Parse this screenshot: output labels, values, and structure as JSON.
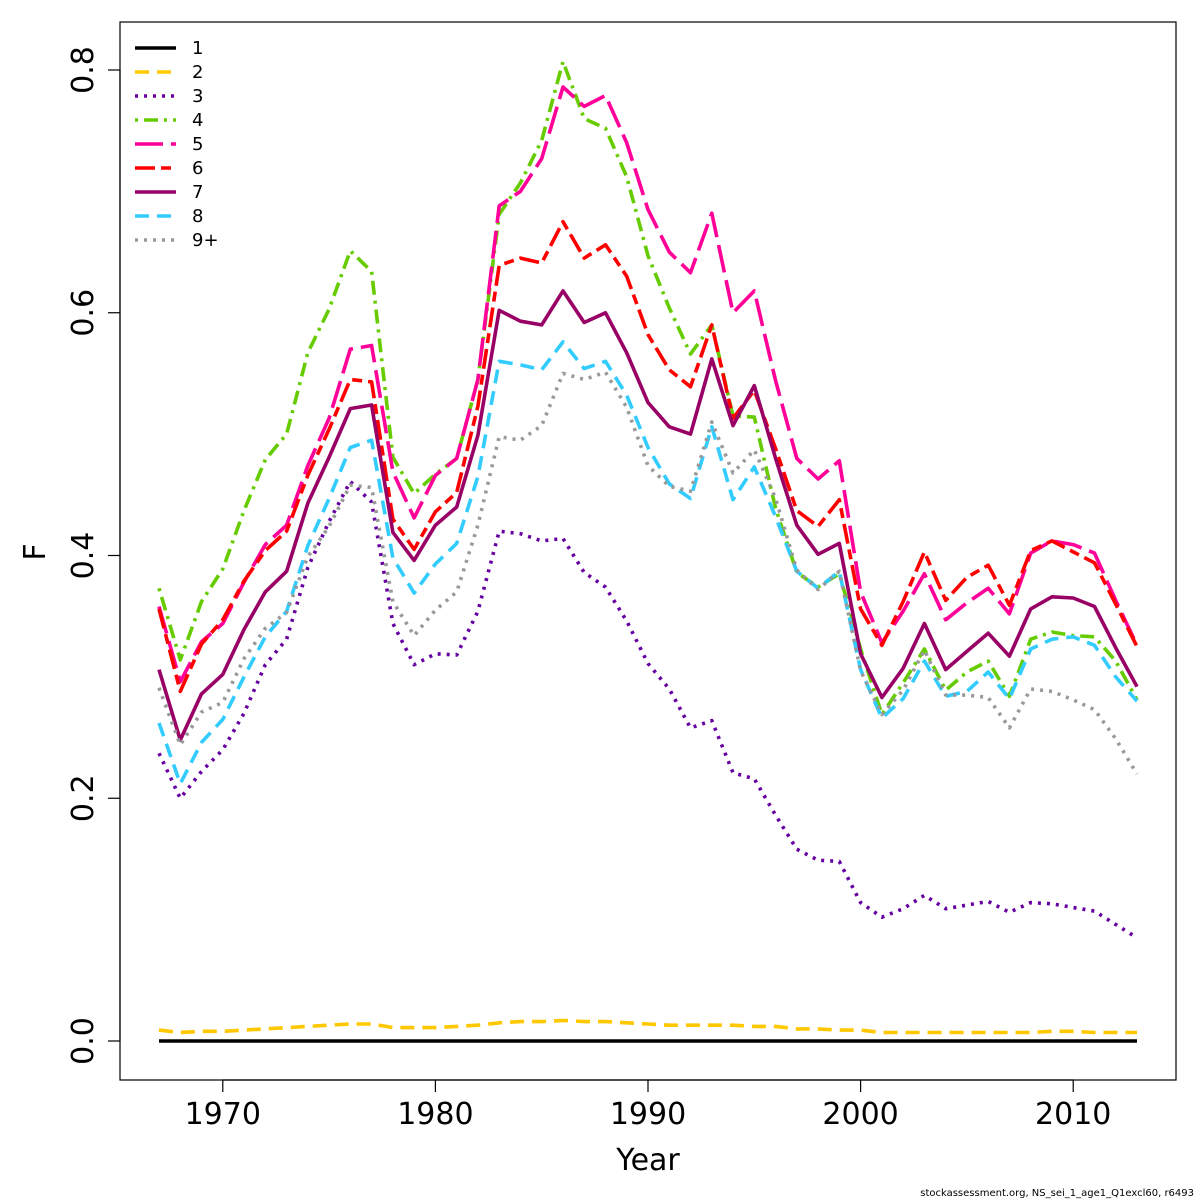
{
  "chart_data": {
    "type": "line",
    "title": "",
    "xlabel": "Year",
    "ylabel": "F",
    "xlim": [
      1967,
      2013
    ],
    "ylim": [
      0,
      0.8
    ],
    "xticks": [
      1970,
      1980,
      1990,
      2000,
      2010
    ],
    "yticks": [
      0.0,
      0.2,
      0.4,
      0.6,
      0.8
    ],
    "ytick_labels": [
      "0.0",
      "0.2",
      "0.4",
      "0.6",
      "0.8"
    ],
    "legend_position": "top-left",
    "grid": false,
    "x": [
      1967,
      1968,
      1969,
      1970,
      1971,
      1972,
      1973,
      1974,
      1975,
      1976,
      1977,
      1978,
      1979,
      1980,
      1981,
      1982,
      1983,
      1984,
      1985,
      1986,
      1987,
      1988,
      1989,
      1990,
      1991,
      1992,
      1993,
      1994,
      1995,
      1996,
      1997,
      1998,
      1999,
      2000,
      2001,
      2002,
      2003,
      2004,
      2005,
      2006,
      2007,
      2008,
      2009,
      2010,
      2011,
      2012,
      2013
    ],
    "series": [
      {
        "name": "1",
        "color": "#000000",
        "dash": "solid",
        "values": [
          0.0,
          0.0,
          0.0,
          0.0,
          0.0,
          0.0,
          0.0,
          0.0,
          0.0,
          0.0,
          0.0,
          0.0,
          0.0,
          0.0,
          0.0,
          0.0,
          0.0,
          0.0,
          0.0,
          0.0,
          0.0,
          0.0,
          0.0,
          0.0,
          0.0,
          0.0,
          0.0,
          0.0,
          0.0,
          0.0,
          0.0,
          0.0,
          0.0,
          0.0,
          0.0,
          0.0,
          0.0,
          0.0,
          0.0,
          0.0,
          0.0,
          0.0,
          0.0,
          0.0,
          0.0,
          0.0,
          0.0
        ]
      },
      {
        "name": "2",
        "color": "#FFC800",
        "dash": "dashed",
        "values": [
          0.009,
          0.007,
          0.008,
          0.008,
          0.009,
          0.01,
          0.011,
          0.012,
          0.013,
          0.014,
          0.014,
          0.011,
          0.011,
          0.011,
          0.012,
          0.013,
          0.015,
          0.016,
          0.016,
          0.017,
          0.016,
          0.016,
          0.015,
          0.014,
          0.013,
          0.013,
          0.013,
          0.013,
          0.012,
          0.012,
          0.01,
          0.01,
          0.009,
          0.009,
          0.007,
          0.007,
          0.007,
          0.007,
          0.007,
          0.007,
          0.007,
          0.007,
          0.008,
          0.008,
          0.007,
          0.007,
          0.007
        ]
      },
      {
        "name": "3",
        "color": "#6600A0",
        "dash": "dotted",
        "values": [
          0.237,
          0.2,
          0.222,
          0.24,
          0.27,
          0.31,
          0.331,
          0.39,
          0.428,
          0.461,
          0.444,
          0.344,
          0.31,
          0.319,
          0.318,
          0.354,
          0.42,
          0.418,
          0.412,
          0.414,
          0.386,
          0.374,
          0.346,
          0.311,
          0.29,
          0.258,
          0.264,
          0.221,
          0.216,
          0.186,
          0.158,
          0.149,
          0.148,
          0.114,
          0.102,
          0.109,
          0.12,
          0.109,
          0.112,
          0.115,
          0.106,
          0.114,
          0.113,
          0.11,
          0.107,
          0.096,
          0.085
        ]
      },
      {
        "name": "4",
        "color": "#66CC00",
        "dash": "dashdot",
        "values": [
          0.373,
          0.314,
          0.362,
          0.389,
          0.437,
          0.479,
          0.5,
          0.567,
          0.603,
          0.651,
          0.634,
          0.481,
          0.451,
          0.467,
          0.48,
          0.545,
          0.681,
          0.707,
          0.742,
          0.807,
          0.76,
          0.752,
          0.712,
          0.647,
          0.604,
          0.566,
          0.59,
          0.515,
          0.514,
          0.439,
          0.386,
          0.374,
          0.385,
          0.323,
          0.269,
          0.295,
          0.323,
          0.289,
          0.304,
          0.313,
          0.284,
          0.331,
          0.337,
          0.334,
          0.333,
          0.313,
          0.281
        ]
      },
      {
        "name": "5",
        "color": "#FF0099",
        "dash": "longdash",
        "values": [
          0.358,
          0.296,
          0.329,
          0.344,
          0.378,
          0.409,
          0.425,
          0.474,
          0.513,
          0.57,
          0.573,
          0.469,
          0.431,
          0.466,
          0.48,
          0.545,
          0.688,
          0.7,
          0.727,
          0.786,
          0.77,
          0.779,
          0.74,
          0.685,
          0.65,
          0.633,
          0.682,
          0.6,
          0.618,
          0.544,
          0.48,
          0.463,
          0.478,
          0.37,
          0.328,
          0.354,
          0.385,
          0.347,
          0.361,
          0.373,
          0.352,
          0.402,
          0.412,
          0.409,
          0.402,
          0.363,
          0.326
        ]
      },
      {
        "name": "6",
        "color": "#FF0000",
        "dash": "twodash",
        "values": [
          0.356,
          0.288,
          0.327,
          0.347,
          0.379,
          0.404,
          0.42,
          0.466,
          0.504,
          0.545,
          0.543,
          0.43,
          0.405,
          0.436,
          0.452,
          0.523,
          0.639,
          0.645,
          0.641,
          0.675,
          0.645,
          0.656,
          0.63,
          0.582,
          0.553,
          0.539,
          0.59,
          0.513,
          0.536,
          0.488,
          0.437,
          0.424,
          0.446,
          0.356,
          0.326,
          0.362,
          0.403,
          0.363,
          0.382,
          0.392,
          0.359,
          0.404,
          0.412,
          0.403,
          0.394,
          0.36,
          0.325
        ]
      },
      {
        "name": "7",
        "color": "#990066",
        "dash": "solid",
        "values": [
          0.306,
          0.248,
          0.286,
          0.302,
          0.339,
          0.37,
          0.387,
          0.443,
          0.481,
          0.521,
          0.524,
          0.419,
          0.396,
          0.425,
          0.44,
          0.499,
          0.602,
          0.593,
          0.59,
          0.618,
          0.592,
          0.6,
          0.567,
          0.526,
          0.506,
          0.5,
          0.562,
          0.507,
          0.54,
          0.48,
          0.425,
          0.401,
          0.41,
          0.319,
          0.283,
          0.307,
          0.344,
          0.306,
          0.321,
          0.336,
          0.317,
          0.356,
          0.366,
          0.365,
          0.358,
          0.324,
          0.292
        ]
      },
      {
        "name": "8",
        "color": "#33CCFF",
        "dash": "dashed",
        "values": [
          0.262,
          0.212,
          0.246,
          0.265,
          0.3,
          0.333,
          0.354,
          0.408,
          0.447,
          0.489,
          0.495,
          0.398,
          0.369,
          0.393,
          0.41,
          0.465,
          0.56,
          0.557,
          0.553,
          0.576,
          0.554,
          0.56,
          0.532,
          0.489,
          0.459,
          0.447,
          0.506,
          0.446,
          0.473,
          0.432,
          0.387,
          0.373,
          0.387,
          0.306,
          0.266,
          0.282,
          0.313,
          0.284,
          0.288,
          0.304,
          0.282,
          0.323,
          0.331,
          0.333,
          0.326,
          0.3,
          0.28
        ]
      },
      {
        "name": "9+",
        "color": "#999999",
        "dash": "dotted",
        "values": [
          0.291,
          0.244,
          0.271,
          0.279,
          0.315,
          0.34,
          0.353,
          0.399,
          0.424,
          0.458,
          0.456,
          0.362,
          0.334,
          0.355,
          0.37,
          0.425,
          0.498,
          0.495,
          0.507,
          0.55,
          0.545,
          0.551,
          0.522,
          0.474,
          0.457,
          0.453,
          0.51,
          0.468,
          0.487,
          0.447,
          0.388,
          0.372,
          0.387,
          0.305,
          0.269,
          0.289,
          0.322,
          0.285,
          0.285,
          0.283,
          0.258,
          0.29,
          0.288,
          0.281,
          0.273,
          0.249,
          0.22
        ]
      }
    ]
  },
  "footer": "stockassessment.org, NS_sei_1_age1_Q1excl60, r6493"
}
